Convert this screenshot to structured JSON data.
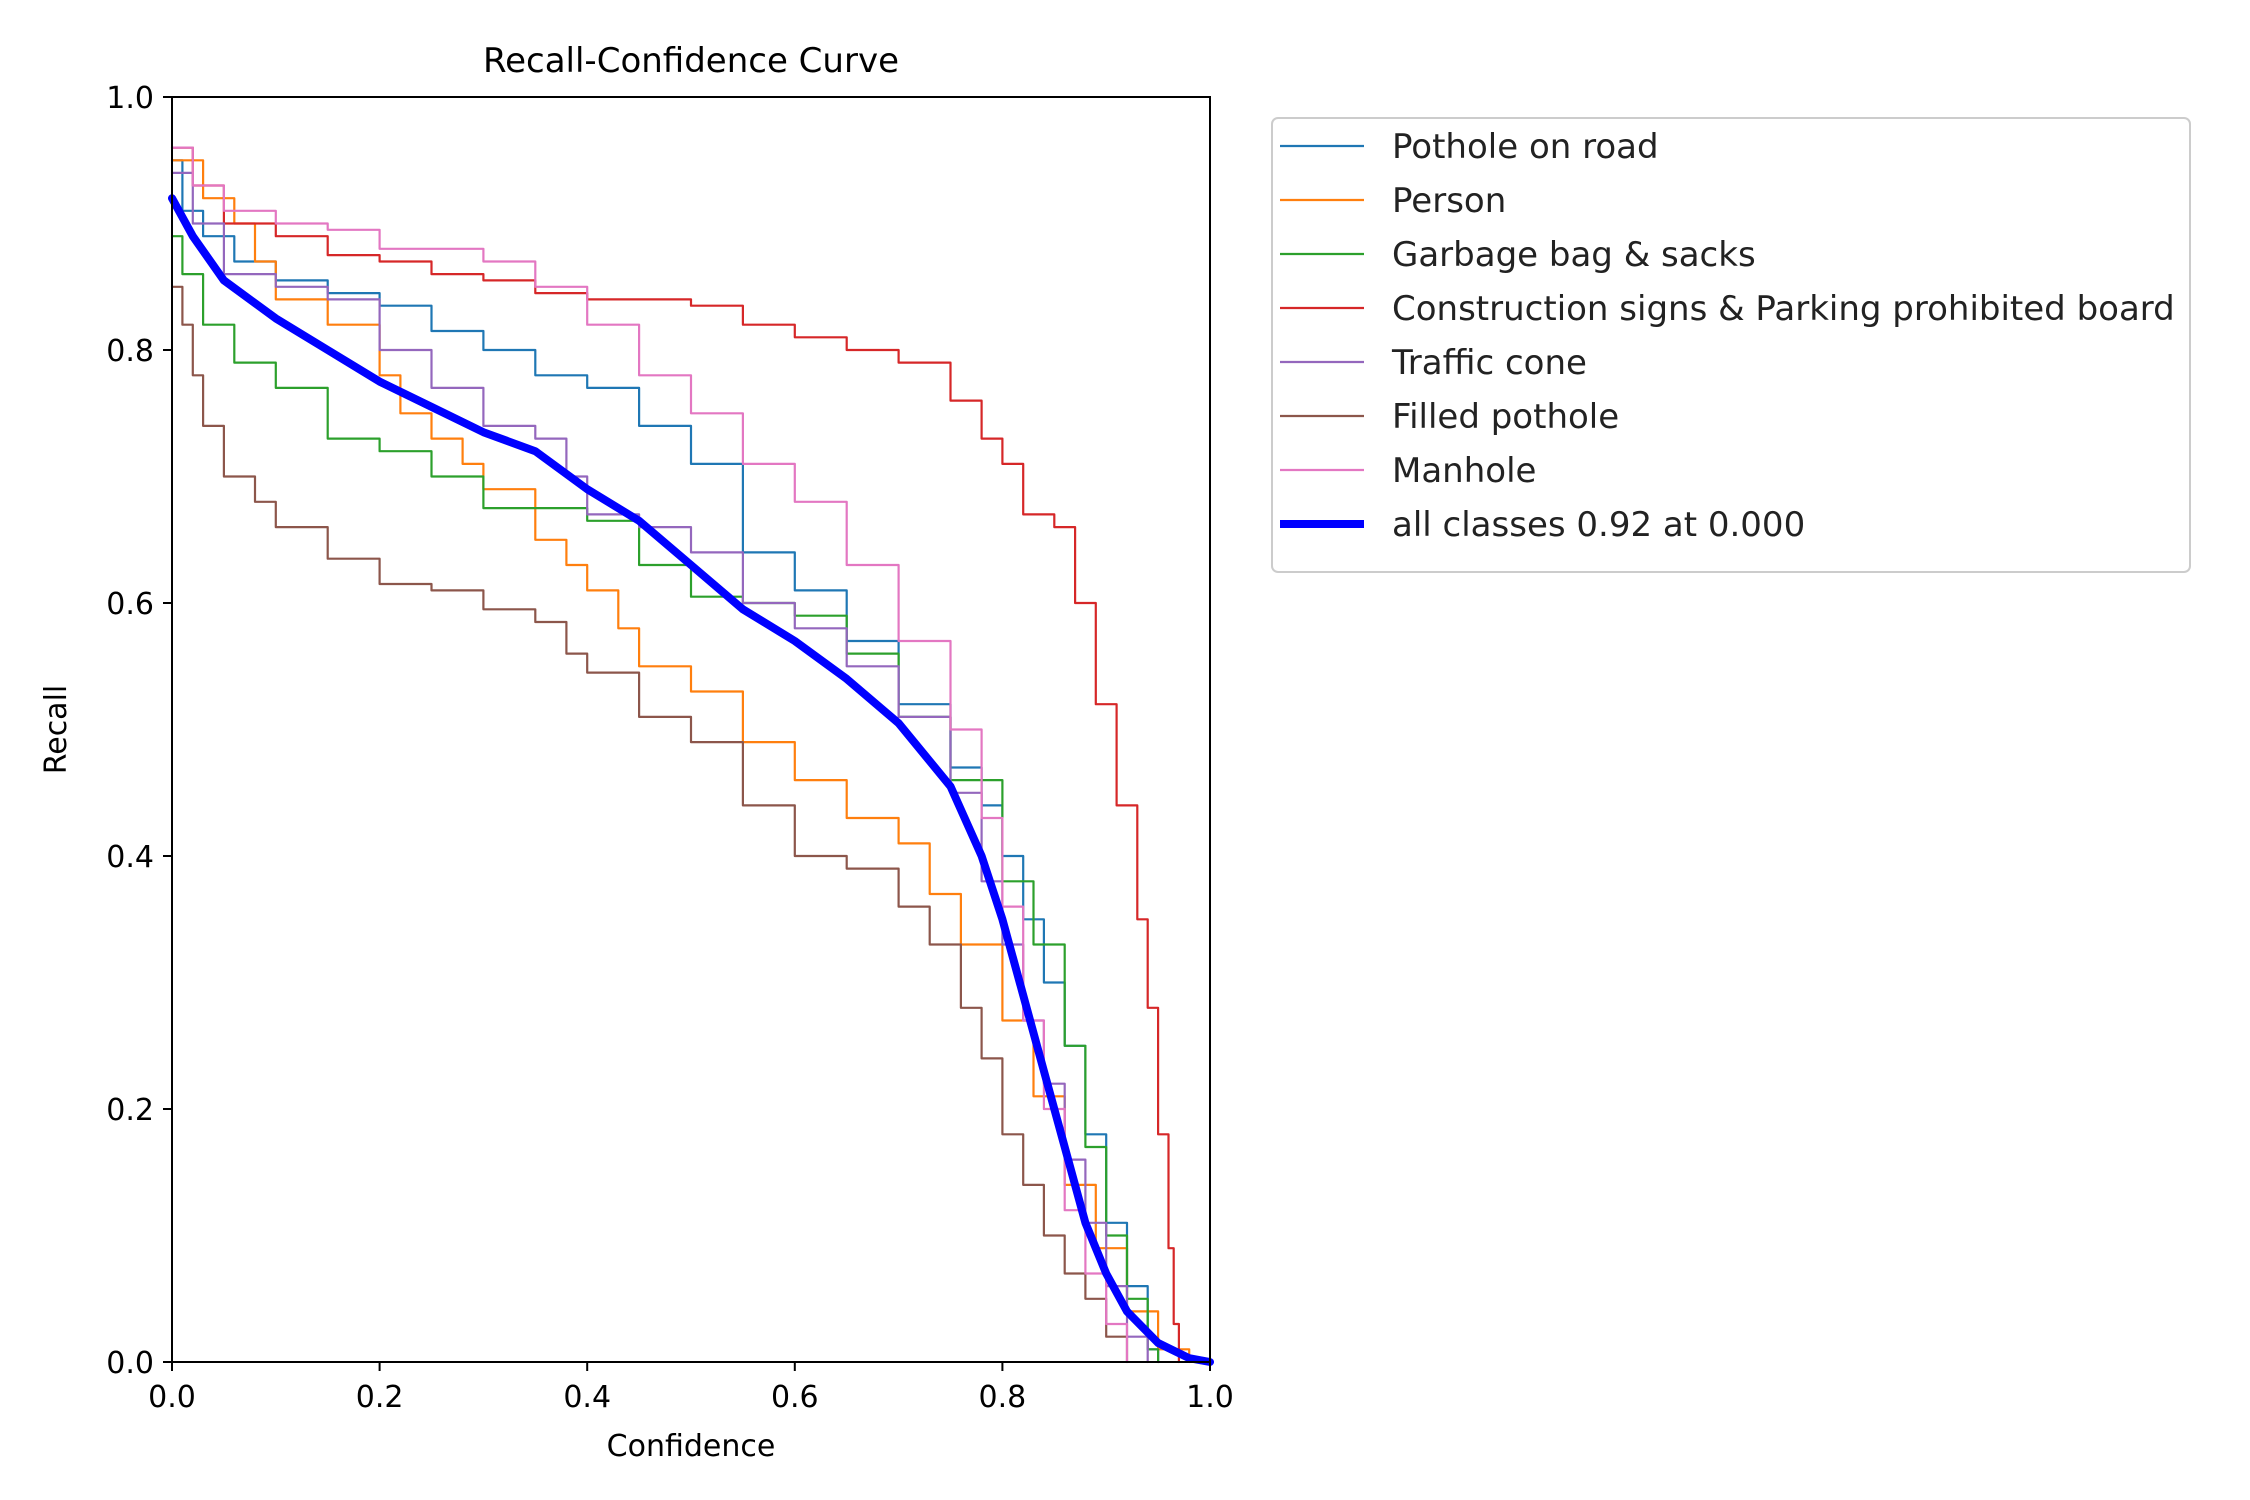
{
  "chart_data": {
    "type": "line",
    "title": "Recall-Confidence Curve",
    "xlabel": "Confidence",
    "ylabel": "Recall",
    "xlim": [
      0,
      1
    ],
    "ylim": [
      0,
      1
    ],
    "x_ticks": [
      "0.0",
      "0.2",
      "0.4",
      "0.6",
      "0.8",
      "1.0"
    ],
    "y_ticks": [
      "0.0",
      "0.2",
      "0.4",
      "0.6",
      "0.8",
      "1.0"
    ],
    "grid": false,
    "legend_position": "outside-top-right",
    "series": [
      {
        "name": "Pothole on road",
        "color": "#1f77b4",
        "points": [
          [
            0,
            0.95
          ],
          [
            0.01,
            0.91
          ],
          [
            0.03,
            0.89
          ],
          [
            0.06,
            0.87
          ],
          [
            0.1,
            0.855
          ],
          [
            0.15,
            0.845
          ],
          [
            0.2,
            0.835
          ],
          [
            0.25,
            0.815
          ],
          [
            0.3,
            0.8
          ],
          [
            0.35,
            0.78
          ],
          [
            0.4,
            0.77
          ],
          [
            0.45,
            0.74
          ],
          [
            0.5,
            0.71
          ],
          [
            0.55,
            0.64
          ],
          [
            0.6,
            0.61
          ],
          [
            0.65,
            0.57
          ],
          [
            0.7,
            0.52
          ],
          [
            0.75,
            0.47
          ],
          [
            0.78,
            0.44
          ],
          [
            0.8,
            0.4
          ],
          [
            0.82,
            0.35
          ],
          [
            0.84,
            0.3
          ],
          [
            0.86,
            0.25
          ],
          [
            0.88,
            0.18
          ],
          [
            0.9,
            0.11
          ],
          [
            0.92,
            0.06
          ],
          [
            0.94,
            0.01
          ],
          [
            0.95,
            0
          ]
        ]
      },
      {
        "name": "Person",
        "color": "#ff7f0e",
        "points": [
          [
            0,
            0.95
          ],
          [
            0.03,
            0.92
          ],
          [
            0.06,
            0.9
          ],
          [
            0.08,
            0.87
          ],
          [
            0.1,
            0.84
          ],
          [
            0.15,
            0.82
          ],
          [
            0.2,
            0.78
          ],
          [
            0.22,
            0.75
          ],
          [
            0.25,
            0.73
          ],
          [
            0.28,
            0.71
          ],
          [
            0.3,
            0.69
          ],
          [
            0.35,
            0.65
          ],
          [
            0.38,
            0.63
          ],
          [
            0.4,
            0.61
          ],
          [
            0.43,
            0.58
          ],
          [
            0.45,
            0.55
          ],
          [
            0.5,
            0.53
          ],
          [
            0.55,
            0.49
          ],
          [
            0.6,
            0.46
          ],
          [
            0.65,
            0.43
          ],
          [
            0.7,
            0.41
          ],
          [
            0.73,
            0.37
          ],
          [
            0.76,
            0.33
          ],
          [
            0.8,
            0.27
          ],
          [
            0.83,
            0.21
          ],
          [
            0.86,
            0.14
          ],
          [
            0.89,
            0.09
          ],
          [
            0.92,
            0.04
          ],
          [
            0.95,
            0.01
          ],
          [
            0.98,
            0
          ]
        ]
      },
      {
        "name": "Garbage bag & sacks",
        "color": "#2ca02c",
        "points": [
          [
            0,
            0.89
          ],
          [
            0.01,
            0.86
          ],
          [
            0.03,
            0.82
          ],
          [
            0.06,
            0.79
          ],
          [
            0.1,
            0.77
          ],
          [
            0.15,
            0.73
          ],
          [
            0.2,
            0.72
          ],
          [
            0.25,
            0.7
          ],
          [
            0.3,
            0.675
          ],
          [
            0.35,
            0.675
          ],
          [
            0.4,
            0.665
          ],
          [
            0.45,
            0.63
          ],
          [
            0.5,
            0.605
          ],
          [
            0.55,
            0.6
          ],
          [
            0.6,
            0.59
          ],
          [
            0.65,
            0.56
          ],
          [
            0.7,
            0.51
          ],
          [
            0.75,
            0.46
          ],
          [
            0.8,
            0.38
          ],
          [
            0.83,
            0.33
          ],
          [
            0.86,
            0.25
          ],
          [
            0.88,
            0.17
          ],
          [
            0.9,
            0.1
          ],
          [
            0.92,
            0.05
          ],
          [
            0.94,
            0.01
          ],
          [
            0.95,
            0
          ]
        ]
      },
      {
        "name": "Construction signs & Parking prohibited board",
        "color": "#d62728",
        "points": [
          [
            0,
            0.96
          ],
          [
            0.02,
            0.93
          ],
          [
            0.05,
            0.9
          ],
          [
            0.1,
            0.89
          ],
          [
            0.15,
            0.875
          ],
          [
            0.2,
            0.87
          ],
          [
            0.25,
            0.86
          ],
          [
            0.3,
            0.855
          ],
          [
            0.35,
            0.845
          ],
          [
            0.4,
            0.84
          ],
          [
            0.5,
            0.835
          ],
          [
            0.55,
            0.82
          ],
          [
            0.6,
            0.81
          ],
          [
            0.65,
            0.8
          ],
          [
            0.7,
            0.79
          ],
          [
            0.75,
            0.76
          ],
          [
            0.78,
            0.73
          ],
          [
            0.8,
            0.71
          ],
          [
            0.82,
            0.67
          ],
          [
            0.85,
            0.66
          ],
          [
            0.87,
            0.6
          ],
          [
            0.89,
            0.52
          ],
          [
            0.91,
            0.44
          ],
          [
            0.93,
            0.35
          ],
          [
            0.94,
            0.28
          ],
          [
            0.95,
            0.18
          ],
          [
            0.96,
            0.09
          ],
          [
            0.965,
            0.03
          ],
          [
            0.97,
            0
          ]
        ]
      },
      {
        "name": "Traffic cone",
        "color": "#9467bd",
        "points": [
          [
            0,
            0.94
          ],
          [
            0.02,
            0.9
          ],
          [
            0.05,
            0.86
          ],
          [
            0.1,
            0.85
          ],
          [
            0.15,
            0.84
          ],
          [
            0.2,
            0.8
          ],
          [
            0.25,
            0.77
          ],
          [
            0.3,
            0.74
          ],
          [
            0.35,
            0.73
          ],
          [
            0.38,
            0.7
          ],
          [
            0.4,
            0.67
          ],
          [
            0.45,
            0.66
          ],
          [
            0.5,
            0.64
          ],
          [
            0.55,
            0.6
          ],
          [
            0.6,
            0.58
          ],
          [
            0.65,
            0.55
          ],
          [
            0.7,
            0.51
          ],
          [
            0.75,
            0.45
          ],
          [
            0.78,
            0.38
          ],
          [
            0.8,
            0.33
          ],
          [
            0.82,
            0.27
          ],
          [
            0.84,
            0.22
          ],
          [
            0.86,
            0.16
          ],
          [
            0.88,
            0.11
          ],
          [
            0.9,
            0.06
          ],
          [
            0.92,
            0.02
          ],
          [
            0.94,
            0
          ]
        ]
      },
      {
        "name": "Filled pothole",
        "color": "#8c564b",
        "points": [
          [
            0,
            0.85
          ],
          [
            0.01,
            0.82
          ],
          [
            0.02,
            0.78
          ],
          [
            0.03,
            0.74
          ],
          [
            0.05,
            0.7
          ],
          [
            0.08,
            0.68
          ],
          [
            0.1,
            0.66
          ],
          [
            0.15,
            0.635
          ],
          [
            0.2,
            0.615
          ],
          [
            0.25,
            0.61
          ],
          [
            0.3,
            0.595
          ],
          [
            0.35,
            0.585
          ],
          [
            0.38,
            0.56
          ],
          [
            0.4,
            0.545
          ],
          [
            0.45,
            0.51
          ],
          [
            0.5,
            0.49
          ],
          [
            0.55,
            0.44
          ],
          [
            0.6,
            0.4
          ],
          [
            0.65,
            0.39
          ],
          [
            0.7,
            0.36
          ],
          [
            0.73,
            0.33
          ],
          [
            0.76,
            0.28
          ],
          [
            0.78,
            0.24
          ],
          [
            0.8,
            0.18
          ],
          [
            0.82,
            0.14
          ],
          [
            0.84,
            0.1
          ],
          [
            0.86,
            0.07
          ],
          [
            0.88,
            0.05
          ],
          [
            0.9,
            0.02
          ],
          [
            0.92,
            0
          ]
        ]
      },
      {
        "name": "Manhole",
        "color": "#e377c2",
        "points": [
          [
            0,
            0.96
          ],
          [
            0.02,
            0.93
          ],
          [
            0.05,
            0.91
          ],
          [
            0.1,
            0.9
          ],
          [
            0.15,
            0.895
          ],
          [
            0.2,
            0.88
          ],
          [
            0.25,
            0.88
          ],
          [
            0.3,
            0.87
          ],
          [
            0.35,
            0.85
          ],
          [
            0.4,
            0.82
          ],
          [
            0.45,
            0.78
          ],
          [
            0.5,
            0.75
          ],
          [
            0.55,
            0.71
          ],
          [
            0.6,
            0.68
          ],
          [
            0.65,
            0.63
          ],
          [
            0.7,
            0.57
          ],
          [
            0.75,
            0.5
          ],
          [
            0.78,
            0.43
          ],
          [
            0.8,
            0.36
          ],
          [
            0.82,
            0.27
          ],
          [
            0.84,
            0.2
          ],
          [
            0.86,
            0.12
          ],
          [
            0.88,
            0.07
          ],
          [
            0.9,
            0.03
          ],
          [
            0.92,
            0
          ]
        ]
      },
      {
        "name": "all classes 0.92 at 0.000",
        "color": "#0000ff",
        "bold": true,
        "points": [
          [
            0,
            0.92
          ],
          [
            0.02,
            0.89
          ],
          [
            0.05,
            0.855
          ],
          [
            0.1,
            0.825
          ],
          [
            0.15,
            0.8
          ],
          [
            0.2,
            0.775
          ],
          [
            0.25,
            0.755
          ],
          [
            0.3,
            0.735
          ],
          [
            0.35,
            0.72
          ],
          [
            0.4,
            0.69
          ],
          [
            0.45,
            0.665
          ],
          [
            0.5,
            0.63
          ],
          [
            0.55,
            0.595
          ],
          [
            0.6,
            0.57
          ],
          [
            0.65,
            0.54
          ],
          [
            0.7,
            0.505
          ],
          [
            0.75,
            0.455
          ],
          [
            0.78,
            0.4
          ],
          [
            0.8,
            0.35
          ],
          [
            0.82,
            0.29
          ],
          [
            0.84,
            0.23
          ],
          [
            0.86,
            0.17
          ],
          [
            0.88,
            0.11
          ],
          [
            0.9,
            0.07
          ],
          [
            0.92,
            0.04
          ],
          [
            0.95,
            0.015
          ],
          [
            0.98,
            0.003
          ],
          [
            1.0,
            0
          ]
        ]
      }
    ]
  }
}
